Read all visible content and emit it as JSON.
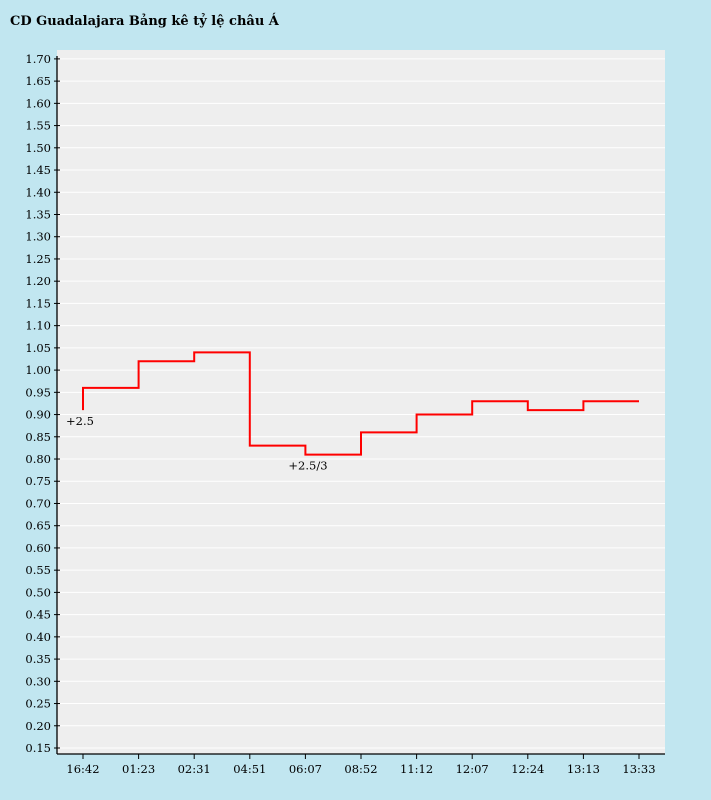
{
  "chart_data": {
    "type": "line",
    "title": "CD Guadalajara Bảng kê tỷ lệ châu Á",
    "xlabel": "",
    "ylabel": "",
    "categories": [
      "16:42",
      "01:23",
      "02:31",
      "04:51",
      "06:07",
      "08:52",
      "11:12",
      "12:07",
      "12:24",
      "13:13",
      "13:33"
    ],
    "y_ticks": [
      "0.15",
      "0.20",
      "0.25",
      "0.30",
      "0.35",
      "0.40",
      "0.45",
      "0.50",
      "0.55",
      "0.60",
      "0.65",
      "0.70",
      "0.75",
      "0.80",
      "0.85",
      "0.90",
      "0.95",
      "1.00",
      "1.05",
      "1.10",
      "1.15",
      "1.20",
      "1.25",
      "1.30",
      "1.35",
      "1.40",
      "1.45",
      "1.50",
      "1.55",
      "1.60",
      "1.65",
      "1.70"
    ],
    "ylim": [
      0.15,
      1.72
    ],
    "step": true,
    "grid": true,
    "series": [
      {
        "color": "#ff0000",
        "points": [
          {
            "x": "16:42",
            "y": 0.91
          },
          {
            "x": "16:42",
            "y": 0.96
          },
          {
            "x": "01:23",
            "y": 1.02
          },
          {
            "x": "02:31",
            "y": 1.04
          },
          {
            "x": "04:51",
            "y": 0.83
          },
          {
            "x": "06:07",
            "y": 0.81
          },
          {
            "x": "08:52",
            "y": 0.86
          },
          {
            "x": "11:12",
            "y": 0.9
          },
          {
            "x": "12:07",
            "y": 0.93
          },
          {
            "x": "12:24",
            "y": 0.91
          },
          {
            "x": "13:13",
            "y": 0.93
          },
          {
            "x": "13:33",
            "y": 0.93
          }
        ]
      }
    ],
    "annotations": [
      {
        "text": "+2.5",
        "x": "16:42",
        "y": 0.91
      },
      {
        "text": "+2.5/3",
        "x": "06:07",
        "y": 0.81
      }
    ],
    "colors": {
      "background": "#c1e6f0",
      "plot_area": "#eeeeee",
      "grid": "#ffffff",
      "line": "#ff0000"
    }
  }
}
